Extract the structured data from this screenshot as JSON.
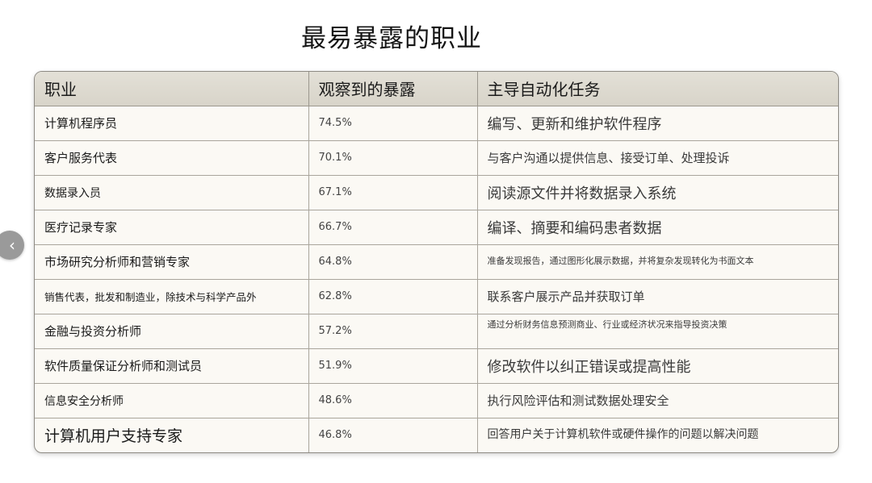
{
  "title": "最易暴露的职业",
  "nav": {
    "prev_icon": "chevron-left-icon",
    "prev_glyph": "‹"
  },
  "table": {
    "headers": [
      "职业",
      "观察到的暴露",
      "主导自动化任务"
    ],
    "rows": [
      {
        "occupation": "计算机程序员",
        "exposure": "74.5%",
        "task": "编写、更新和维护软件程序"
      },
      {
        "occupation": "客户服务代表",
        "exposure": "70.1%",
        "task": "与客户沟通以提供信息、接受订单、处理投诉"
      },
      {
        "occupation": "数据录入员",
        "exposure": "67.1%",
        "task": "阅读源文件并将数据录入系统"
      },
      {
        "occupation": "医疗记录专家",
        "exposure": "66.7%",
        "task": "编译、摘要和编码患者数据"
      },
      {
        "occupation": "市场研究分析师和营销专家",
        "exposure": "64.8%",
        "task": "准备发现报告，通过图形化展示数据，并将复杂发现转化为书面文本"
      },
      {
        "occupation": "销售代表，批发和制造业，除技术与科学产品外",
        "exposure": "62.8%",
        "task": "联系客户展示产品并获取订单"
      },
      {
        "occupation": "金融与投资分析师",
        "exposure": "57.2%",
        "task": "通过分析财务信息预测商业、行业或经济状况来指导投资决策"
      },
      {
        "occupation": "软件质量保证分析师和测试员",
        "exposure": "51.9%",
        "task": "修改软件以纠正错误或提高性能"
      },
      {
        "occupation": "信息安全分析师",
        "exposure": "48.6%",
        "task": "执行风险评估和测试数据处理安全"
      },
      {
        "occupation": "计算机用户支持专家",
        "exposure": "46.8%",
        "task": "回答用户关于计算机软件或硬件操作的问题以解决问题"
      }
    ]
  }
}
